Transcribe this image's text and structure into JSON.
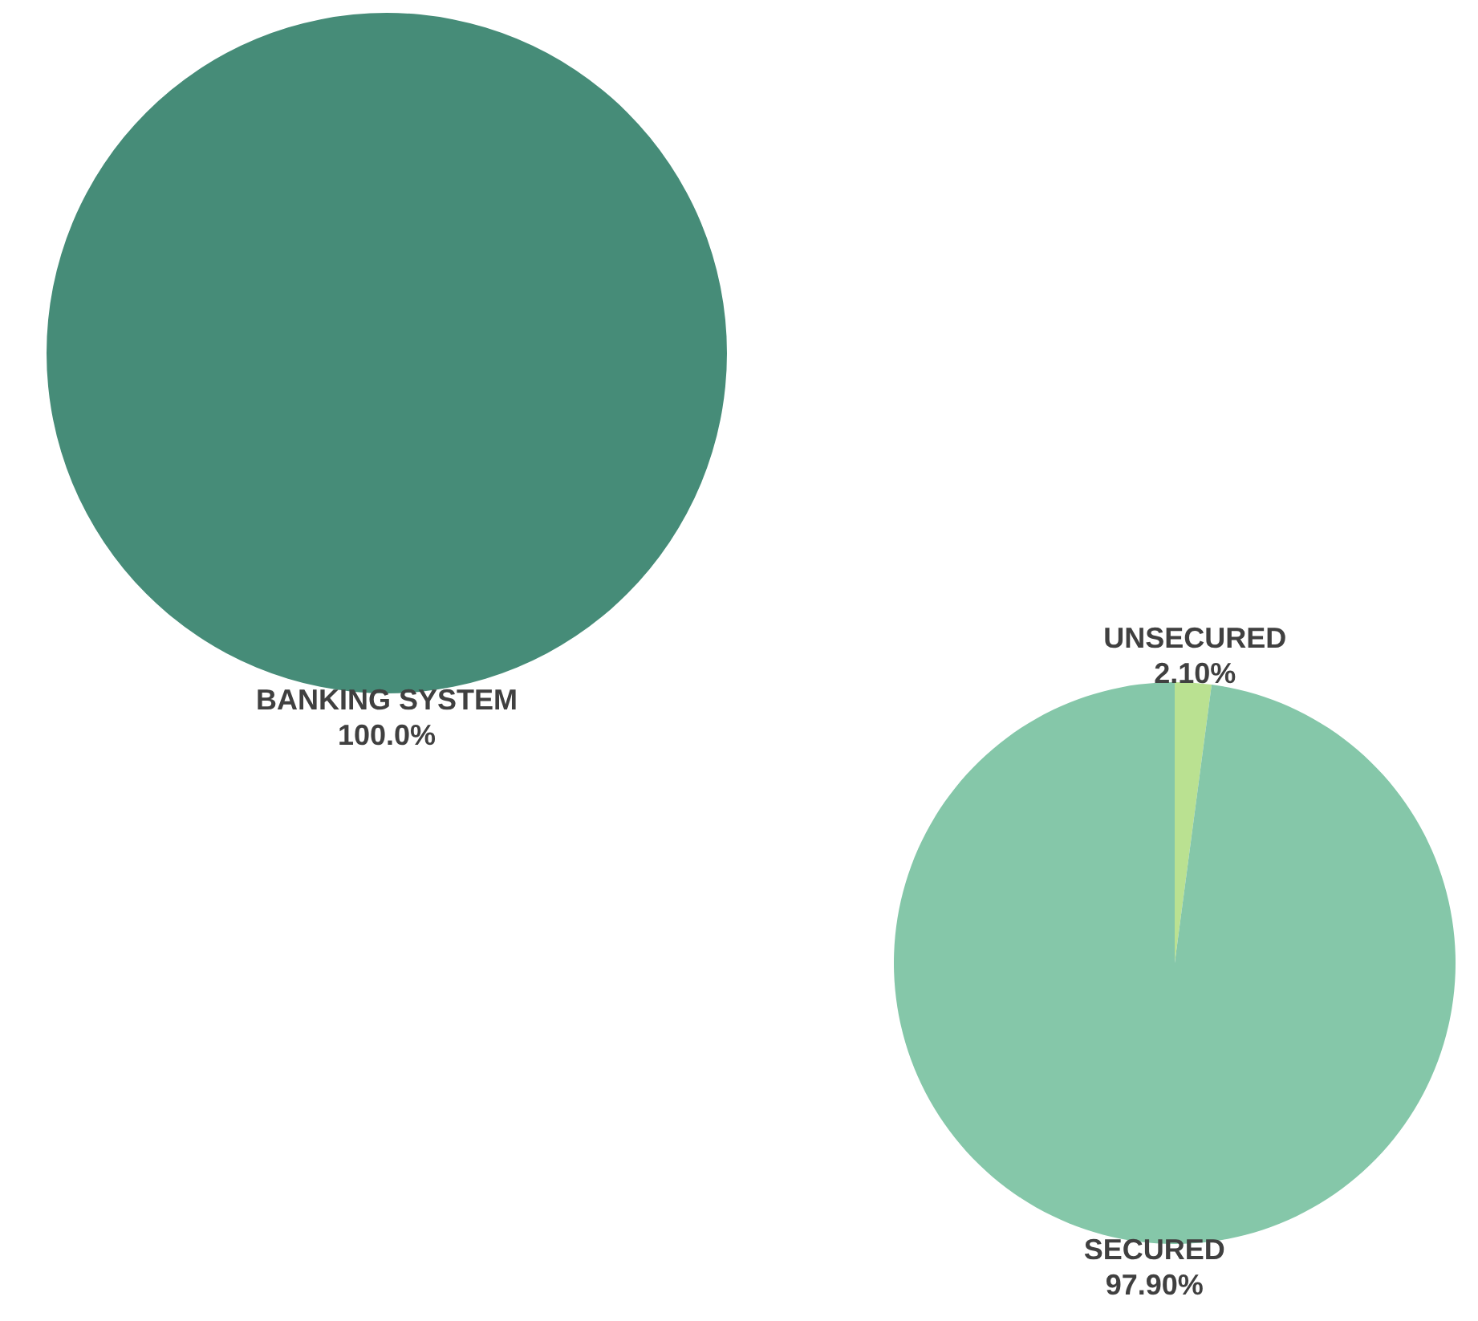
{
  "chart_data": [
    {
      "type": "pie",
      "categories": [
        "BANKING SYSTEM"
      ],
      "values": [
        100.0
      ],
      "colors": [
        "#468c78"
      ],
      "value_labels": [
        "100.0%"
      ]
    },
    {
      "type": "pie",
      "categories": [
        "UNSECURED",
        "SECURED"
      ],
      "values": [
        2.1,
        97.9
      ],
      "colors": [
        "#bae191",
        "#85c7a9"
      ],
      "value_labels": [
        "2.10%",
        "97.90%"
      ]
    }
  ]
}
